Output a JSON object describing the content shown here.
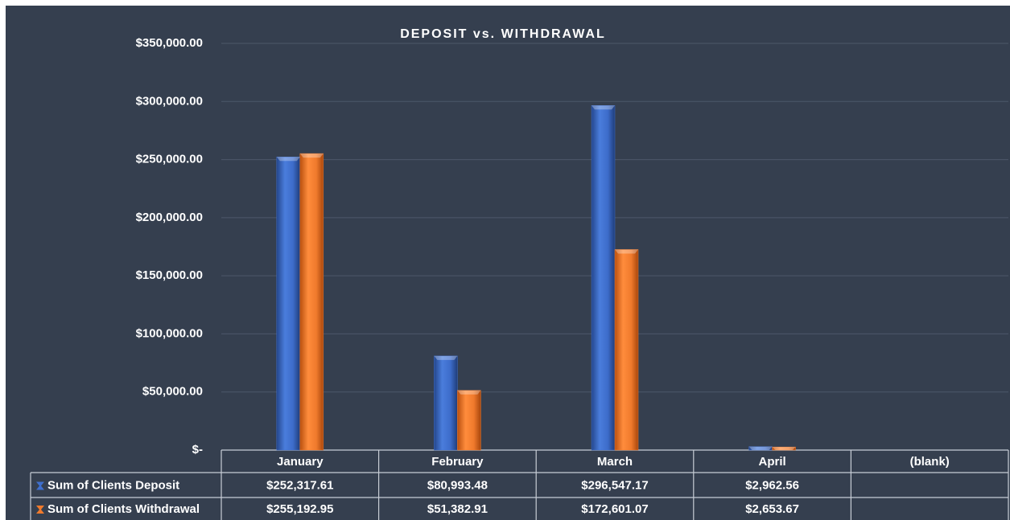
{
  "chart_data": {
    "type": "bar",
    "title": "DEPOSIT vs. WITHDRAWAL",
    "categories": [
      "January",
      "February",
      "March",
      "April",
      "(blank)"
    ],
    "series": [
      {
        "name": "Sum of Clients Deposit",
        "color": "#3f6fce",
        "values": [
          252317.61,
          80993.48,
          296547.17,
          2962.56,
          null
        ],
        "value_labels": [
          "$252,317.61",
          "$80,993.48",
          "$296,547.17",
          "$2,962.56",
          null
        ]
      },
      {
        "name": "Sum of Clients Withdrawal",
        "color": "#f07a2c",
        "values": [
          255192.95,
          51382.91,
          172601.07,
          2653.67,
          null
        ],
        "value_labels": [
          "$255,192.95",
          "$51,382.91",
          "$172,601.07",
          "$2,653.67",
          null
        ]
      }
    ],
    "ylim": [
      0,
      350000
    ],
    "yticks": [
      {
        "value": 0,
        "label": "$-"
      },
      {
        "value": 50000,
        "label": "$50,000.00"
      },
      {
        "value": 100000,
        "label": "$100,000.00"
      },
      {
        "value": 150000,
        "label": "$150,000.00"
      },
      {
        "value": 200000,
        "label": "$200,000.00"
      },
      {
        "value": 250000,
        "label": "$250,000.00"
      },
      {
        "value": 300000,
        "label": "$300,000.00"
      },
      {
        "value": 350000,
        "label": "$350,000.00"
      }
    ],
    "grid": true
  }
}
